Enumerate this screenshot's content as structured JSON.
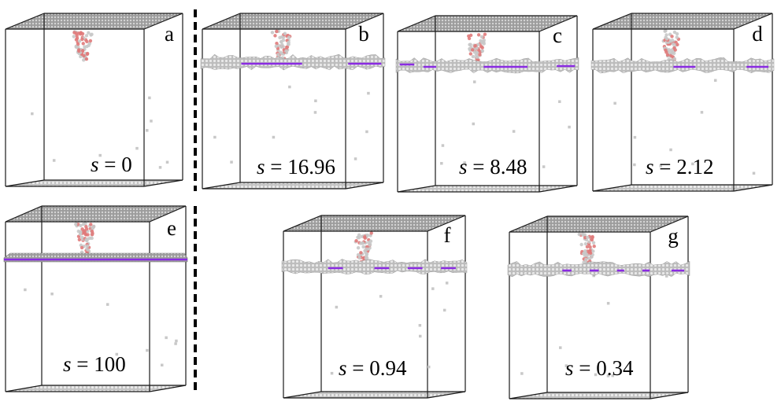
{
  "panels": [
    {
      "label": "a",
      "s_var": "s",
      "s_eq": " = ",
      "s_value": "0",
      "plate": "none",
      "plate_pattern": "none"
    },
    {
      "label": "b",
      "s_var": "s",
      "s_eq": " = ",
      "s_value": "16.96",
      "plate": "stepped",
      "plate_pattern": "long-segments"
    },
    {
      "label": "c",
      "s_var": "s",
      "s_eq": " = ",
      "s_value": "8.48",
      "plate": "stepped",
      "plate_pattern": "medium-segments"
    },
    {
      "label": "d",
      "s_var": "s",
      "s_eq": " = ",
      "s_value": "2.12",
      "plate": "rough",
      "plate_pattern": "short-segments"
    },
    {
      "label": "e",
      "s_var": "s",
      "s_eq": " = ",
      "s_value": "100",
      "plate": "flat",
      "plate_pattern": "continuous"
    },
    {
      "label": "f",
      "s_var": "s",
      "s_eq": " = ",
      "s_value": "0.94",
      "plate": "rough",
      "plate_pattern": "dashes"
    },
    {
      "label": "g",
      "s_var": "s",
      "s_eq": " = ",
      "s_value": "0.34",
      "plate": "rough",
      "plate_pattern": "short-dashes"
    }
  ],
  "colors": {
    "box_edge": "#1a1a1a",
    "atoms": "#c8c8c8",
    "defect": "#e07a7a",
    "plate_line": "#8a2be2",
    "separator": "#000000"
  },
  "separators": [
    "dashed-vertical",
    "dashed-vertical"
  ]
}
